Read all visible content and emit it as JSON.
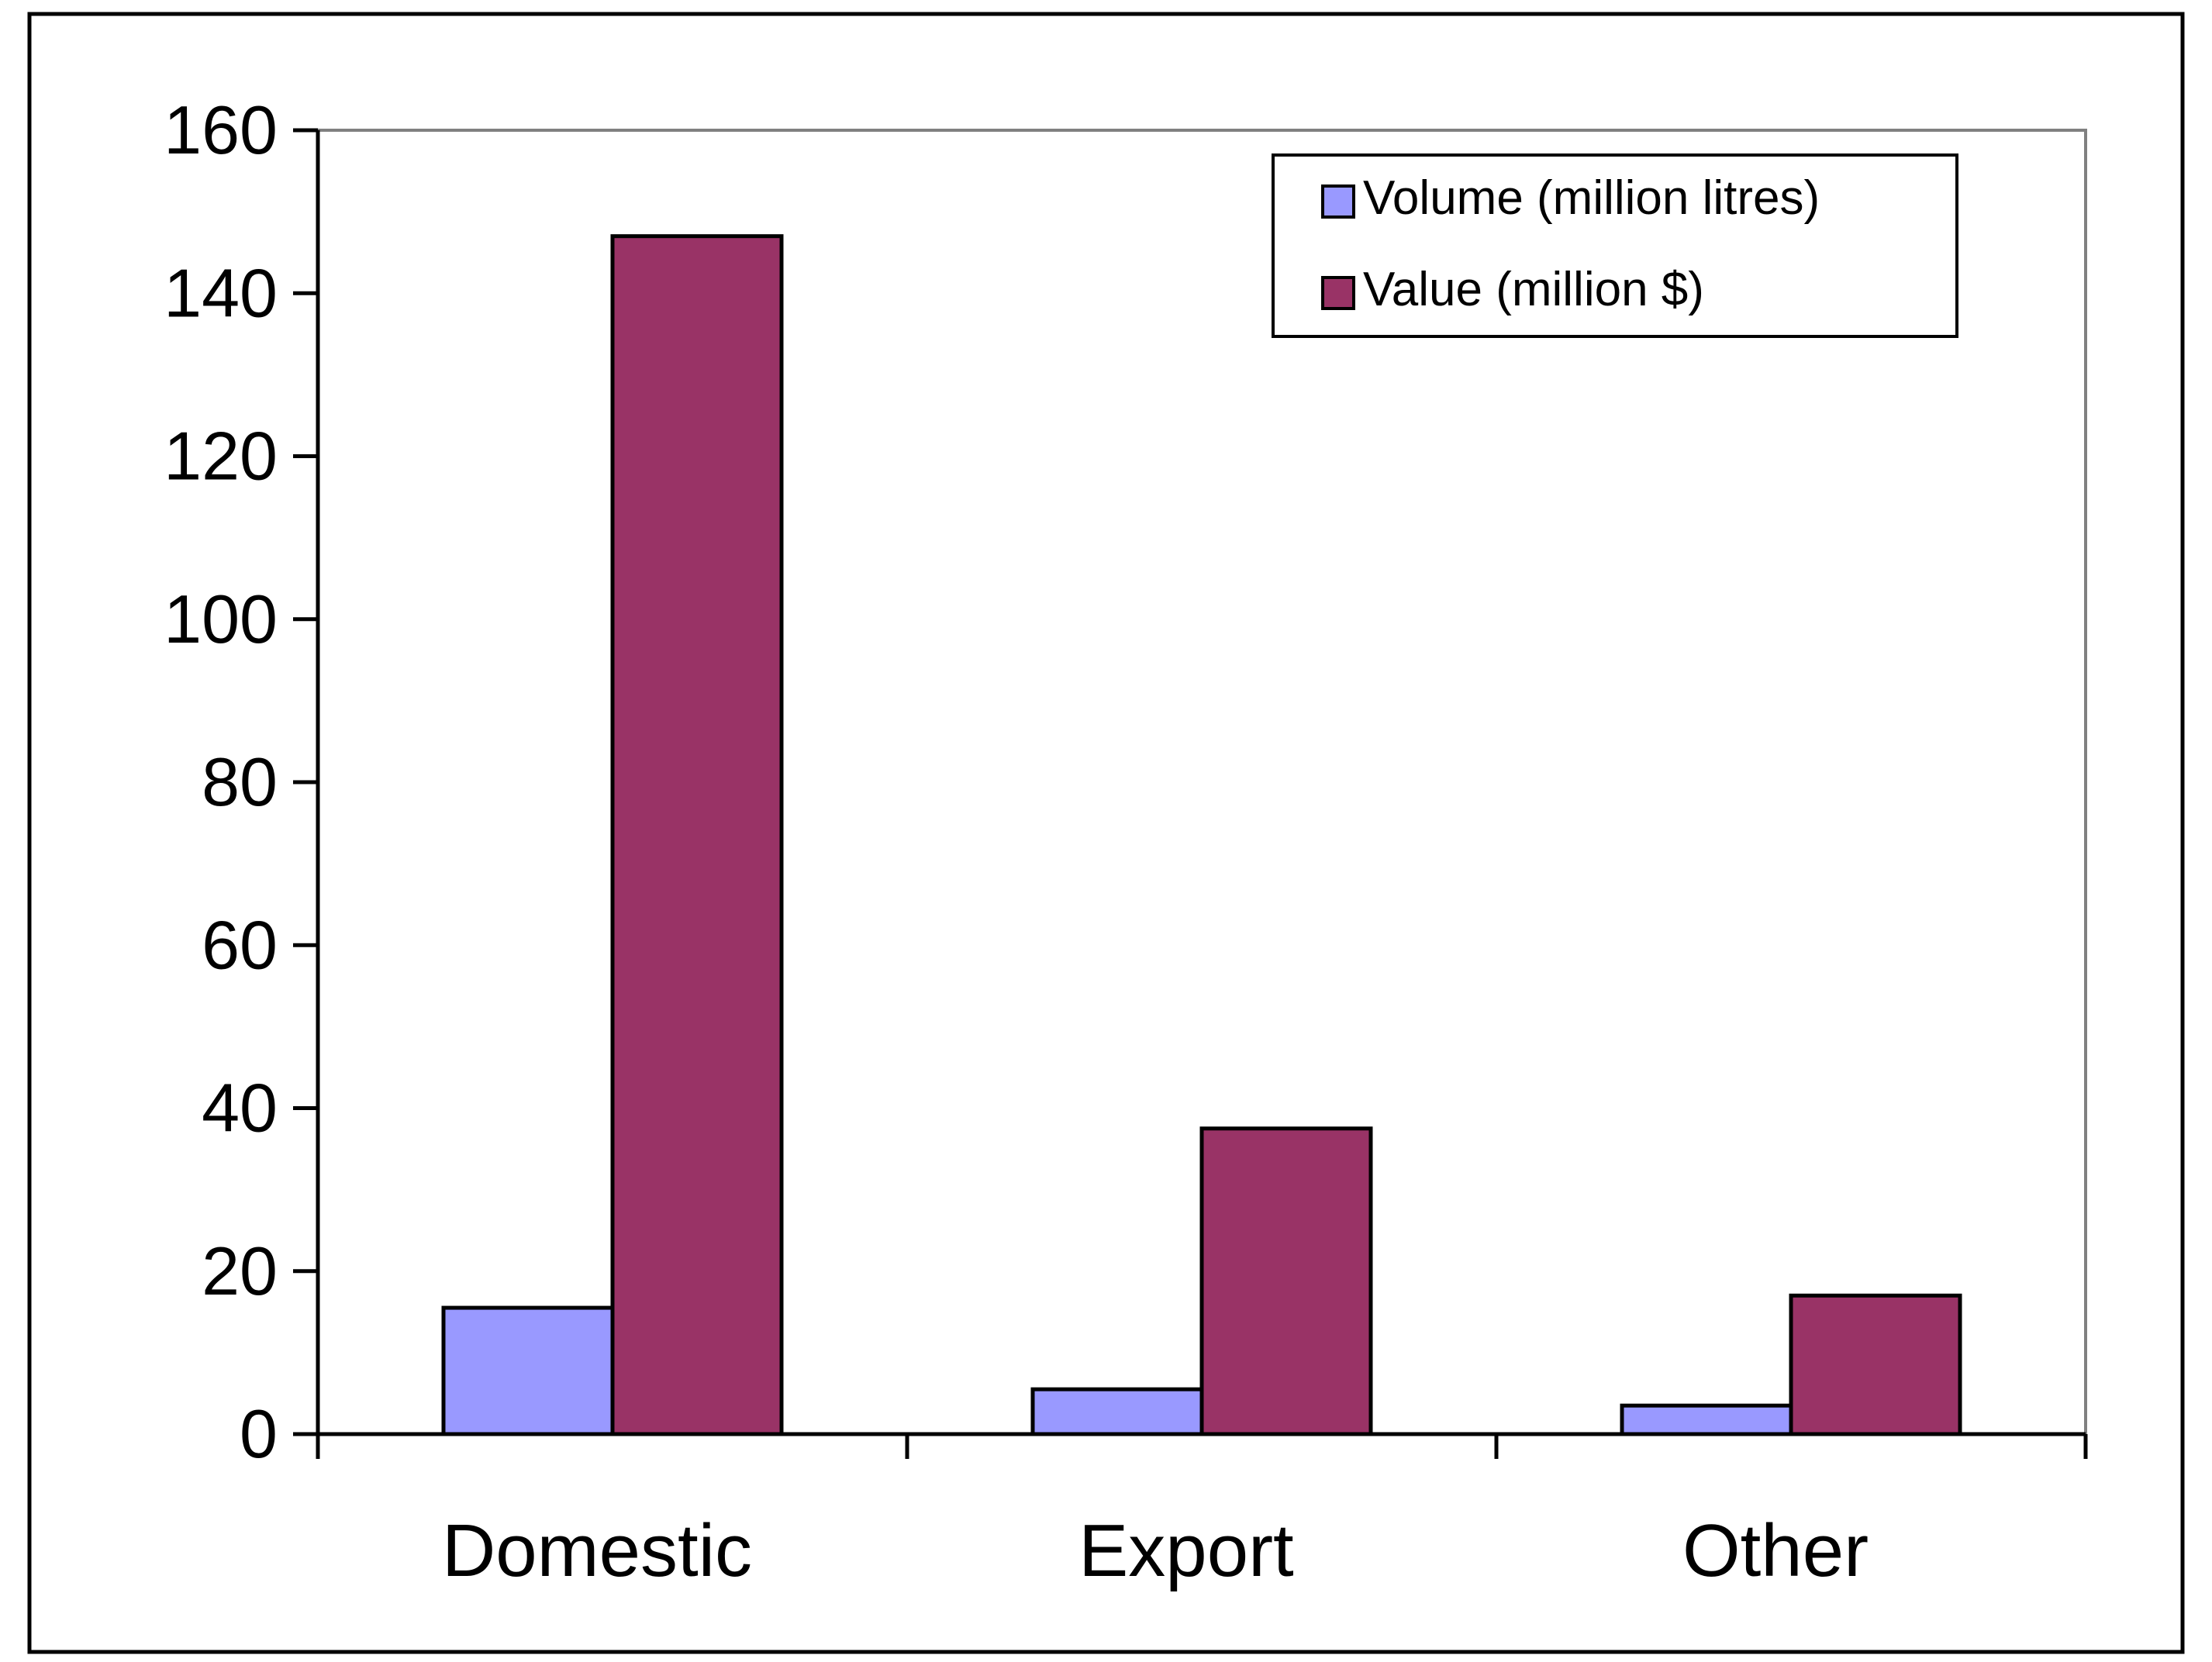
{
  "chart_data": {
    "type": "bar",
    "categories": [
      "Domestic",
      "Export",
      "Other"
    ],
    "series": [
      {
        "name": "Volume (million litres)",
        "values": [
          15.5,
          5.5,
          3.5
        ],
        "color": "#9999ff"
      },
      {
        "name": "Value (million $)",
        "values": [
          147,
          37.5,
          17
        ],
        "color": "#993366"
      }
    ],
    "title": "",
    "xlabel": "",
    "ylabel": "",
    "ylim": [
      0,
      160
    ],
    "yticks": [
      0,
      20,
      40,
      60,
      80,
      100,
      120,
      140,
      160
    ],
    "grid": false,
    "legend_position": "top-right"
  }
}
